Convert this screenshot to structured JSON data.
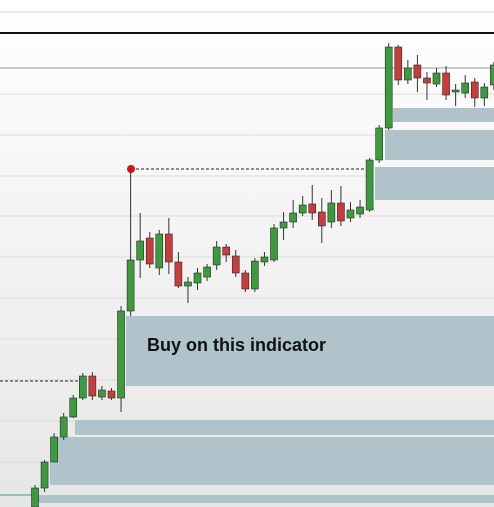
{
  "chart_data": {
    "type": "candlestick",
    "annotation": "Buy on this indicator",
    "up_color": "#3c9b3c",
    "down_color": "#c83c3c",
    "ylim": [
      0,
      101.4
    ],
    "open": [
      0,
      3.8,
      9,
      14,
      18,
      21.8,
      26.2,
      22,
      23.2,
      21.8,
      39.2,
      49.4,
      53.8,
      47.8,
      54.6,
      49,
      44.2,
      44.8,
      46,
      48.4,
      52,
      50.2,
      46.8,
      43.6,
      49,
      49.4,
      55.8,
      57,
      58.8,
      60.6,
      59,
      57,
      60.8,
      57.8,
      58.6,
      59.4,
      69.4,
      75.8,
      92,
      85.4,
      88.4,
      85.8,
      84.6,
      86.8,
      83,
      82.8,
      85,
      81.8,
      84.4
    ],
    "high": [
      4.4,
      9.4,
      14.8,
      18.8,
      22.4,
      26.8,
      27,
      24.2,
      23.8,
      40.2,
      67.6,
      58.8,
      55,
      55.4,
      57.8,
      51,
      46,
      47.8,
      48.6,
      53.2,
      52.6,
      51.4,
      47.4,
      49.8,
      51,
      56.6,
      59,
      61.4,
      62.2,
      64.4,
      61.8,
      63.4,
      64.2,
      61,
      61.4,
      69.8,
      76.4,
      92.8,
      92.4,
      89.4,
      90.4,
      87,
      87.8,
      88.2,
      84.6,
      86.4,
      85.8,
      84.8,
      89
    ],
    "low": [
      0,
      3,
      9,
      13.4,
      17.8,
      21.4,
      21.4,
      21.4,
      21.4,
      19,
      38.2,
      45.8,
      47.8,
      46.4,
      46.6,
      43.8,
      40.8,
      43.4,
      45.2,
      47.4,
      49,
      46,
      43,
      43,
      48.2,
      49,
      53.4,
      55.8,
      58.2,
      57.4,
      52.8,
      55.8,
      56.2,
      57,
      57.8,
      59,
      68.8,
      75.4,
      84.4,
      84.6,
      83,
      81.4,
      84,
      81.4,
      80.2,
      81.8,
      80,
      80.2,
      83.4
    ],
    "close": [
      3.8,
      9,
      14,
      18,
      21.8,
      26.2,
      22.2,
      23.4,
      21.8,
      39.2,
      49.4,
      53.2,
      48.6,
      54.6,
      49,
      44.2,
      45,
      46.8,
      48,
      52,
      50.4,
      46.8,
      43.6,
      49.2,
      50,
      55.8,
      57,
      58.8,
      60.4,
      58.8,
      56.2,
      60.8,
      57.2,
      59.4,
      60,
      69.4,
      75.8,
      92,
      85.4,
      87.8,
      85.8,
      84.8,
      86.8,
      82.4,
      83.4,
      84.8,
      81.8,
      84,
      88.4
    ]
  }
}
